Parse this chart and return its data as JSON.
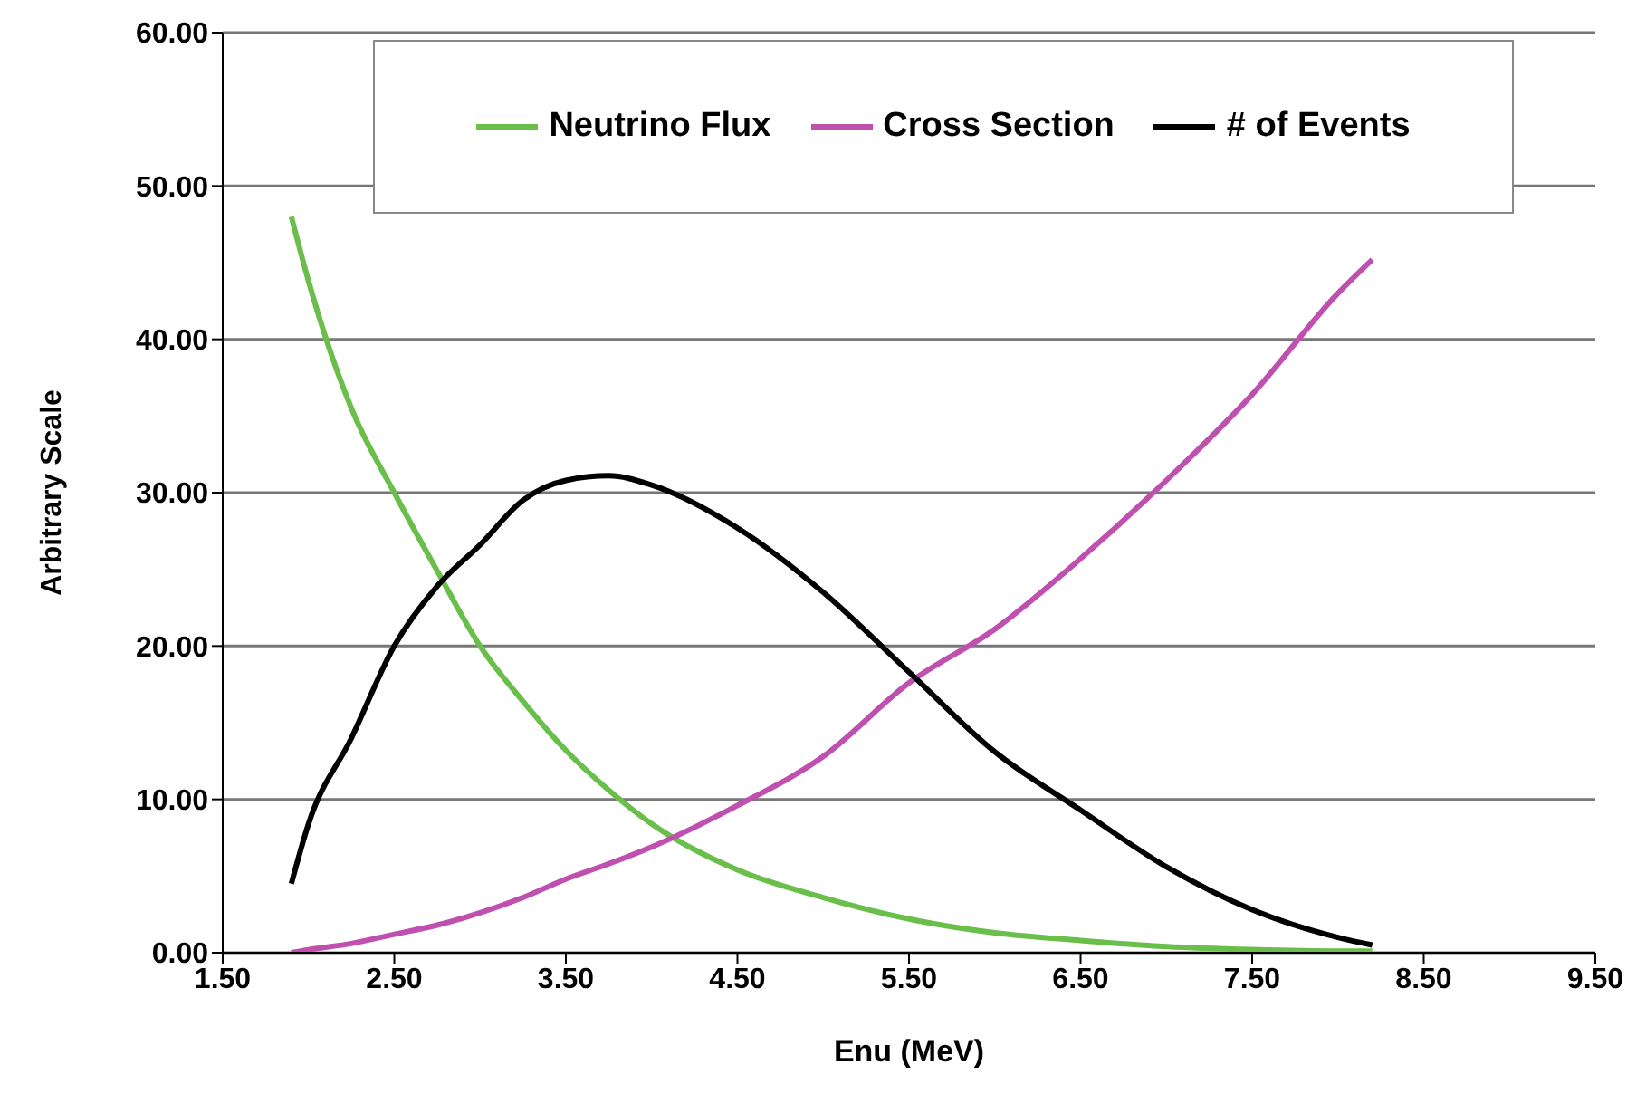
{
  "chart_data": {
    "type": "line",
    "xlabel": "Enu (MeV)",
    "ylabel": "Arbitrary Scale",
    "x": [
      1.9,
      2.0,
      2.25,
      2.5,
      2.75,
      3.0,
      3.25,
      3.5,
      3.75,
      4.0,
      4.5,
      5.0,
      5.5,
      6.0,
      6.5,
      7.0,
      7.5,
      8.0,
      8.2
    ],
    "series": [
      {
        "name": "Neutrino Flux",
        "color": "#6abf4b",
        "values": [
          48,
          43.8,
          35.5,
          30,
          24.9,
          20,
          16.4,
          13.2,
          10.6,
          8.4,
          5.4,
          3.6,
          2.2,
          1.3,
          0.8,
          0.4,
          0.2,
          0.1,
          0.1
        ]
      },
      {
        "name": "Cross Section",
        "color": "#c050b0",
        "values": [
          0,
          0.2,
          0.6,
          1.2,
          1.8,
          2.6,
          3.6,
          4.8,
          5.8,
          6.9,
          9.6,
          12.8,
          17.6,
          21.1,
          25.7,
          30.8,
          36.4,
          43,
          45.2
        ]
      },
      {
        "name": "# of Events",
        "color": "#000000",
        "values": [
          4.5,
          8.4,
          14,
          20,
          23.9,
          26.6,
          29.5,
          30.8,
          31.1,
          30.5,
          27.7,
          23.5,
          18.3,
          13.1,
          9.3,
          5.6,
          2.8,
          1,
          0.5
        ]
      }
    ],
    "xlim": [
      1.5,
      9.5
    ],
    "xticks": [
      {
        "value": 1.5,
        "label": "1.50"
      },
      {
        "value": 2.5,
        "label": "2.50"
      },
      {
        "value": 3.5,
        "label": "3.50"
      },
      {
        "value": 4.5,
        "label": "4.50"
      },
      {
        "value": 5.5,
        "label": "5.50"
      },
      {
        "value": 6.5,
        "label": "6.50"
      },
      {
        "value": 7.5,
        "label": "7.50"
      },
      {
        "value": 8.5,
        "label": "8.50"
      },
      {
        "value": 9.5,
        "label": "9.50"
      }
    ],
    "ylim": [
      0,
      60
    ],
    "yticks": [
      {
        "value": 0,
        "label": "0.00"
      },
      {
        "value": 10,
        "label": "10.00"
      },
      {
        "value": 20,
        "label": "20.00"
      },
      {
        "value": 30,
        "label": "30.00"
      },
      {
        "value": 40,
        "label": "40.00"
      },
      {
        "value": 50,
        "label": "50.00"
      },
      {
        "value": 60,
        "label": "60.00"
      }
    ],
    "grid": "y",
    "legend": "top",
    "marker": "none",
    "line_style": "solid"
  }
}
